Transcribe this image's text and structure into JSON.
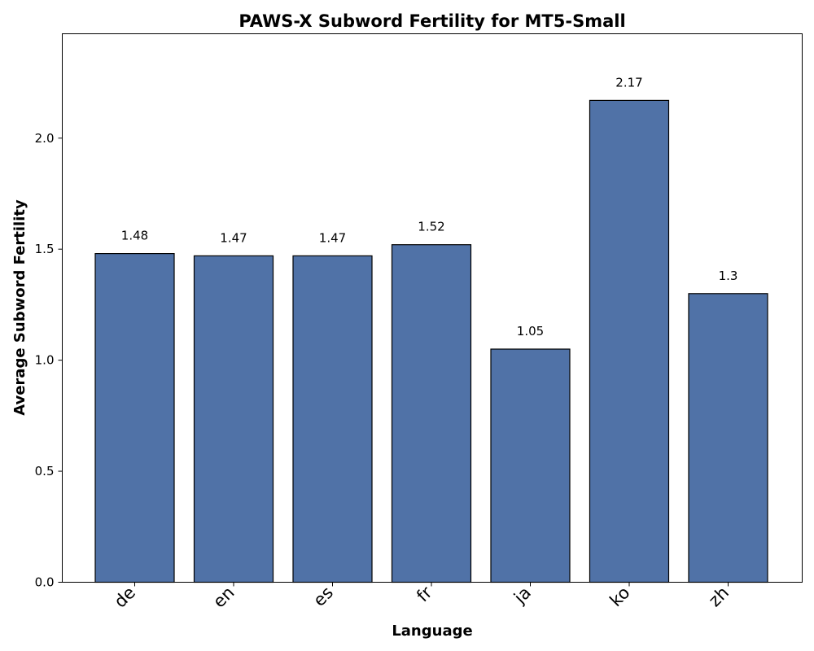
{
  "chart_data": {
    "type": "bar",
    "title": "PAWS-X Subword Fertility for MT5-Small",
    "xlabel": "Language",
    "ylabel": "Average Subword Fertility",
    "categories": [
      "de",
      "en",
      "es",
      "fr",
      "ja",
      "ko",
      "zh"
    ],
    "values": [
      1.48,
      1.47,
      1.47,
      1.52,
      1.05,
      2.17,
      1.3
    ],
    "data_labels": [
      "1.48",
      "1.47",
      "1.47",
      "1.52",
      "1.05",
      "2.17",
      "1.3"
    ],
    "ylim": [
      0,
      2.47
    ],
    "yticks": [
      0.0,
      0.5,
      1.0,
      1.5,
      2.0
    ],
    "ytick_labels": [
      "0.0",
      "0.5",
      "1.0",
      "1.5",
      "2.0"
    ],
    "bar_color": "#5072a7",
    "grid": false,
    "legend": "none"
  }
}
